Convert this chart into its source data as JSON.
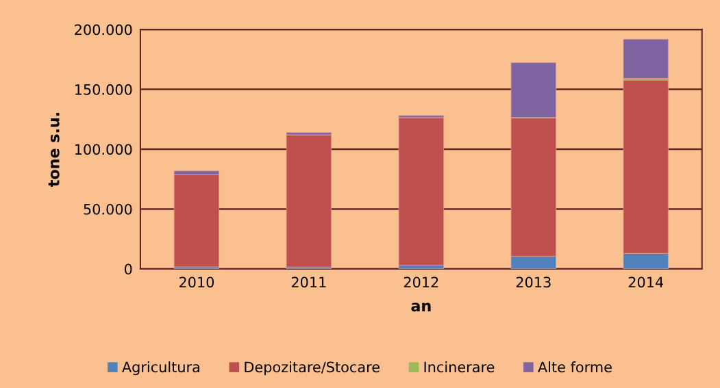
{
  "chart_data": {
    "type": "bar",
    "stacked": true,
    "xlabel": "an",
    "ylabel": "tone s.u.",
    "categories": [
      "2010",
      "2011",
      "2012",
      "2013",
      "2014"
    ],
    "series": [
      {
        "name": "Agricultura",
        "color": "#4f81bd",
        "values": [
          1700,
          1500,
          3000,
          10500,
          12900
        ]
      },
      {
        "name": "Depozitare/Stocare",
        "color": "#c0504d",
        "values": [
          77000,
          110500,
          123400,
          115500,
          144800
        ]
      },
      {
        "name": "Incinerare",
        "color": "#9bbb59",
        "values": [
          0,
          null,
          null,
          500,
          1500
        ]
      },
      {
        "name": "Alte forme",
        "color": "#8064a2",
        "values": [
          3200,
          2000,
          1700,
          45800,
          32700
        ]
      }
    ],
    "ylim": [
      0,
      200000
    ],
    "yticks": [
      {
        "value": 0,
        "label": "0"
      },
      {
        "value": 50000,
        "label": "50.000"
      },
      {
        "value": 100000,
        "label": "100.000"
      },
      {
        "value": 150000,
        "label": "150.000"
      },
      {
        "value": 200000,
        "label": "200.000"
      }
    ],
    "grid": "y",
    "legend": "bottom"
  }
}
